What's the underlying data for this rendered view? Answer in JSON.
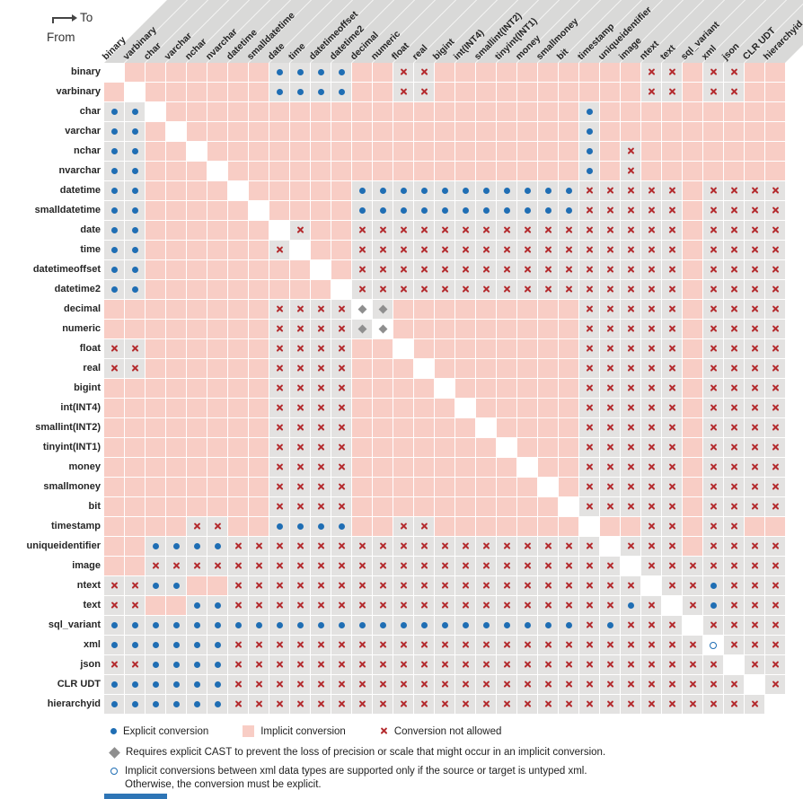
{
  "header": {
    "to_label": "To",
    "from_label": "From"
  },
  "legend": {
    "explicit": "Explicit conversion",
    "implicit": "Implicit conversion",
    "not_allowed": "Conversion not allowed",
    "cast_note": "Requires explicit CAST to prevent the loss of precision or scale that might occur in an implicit conversion.",
    "xml_note_line1": "Implicit conversions between xml data types are supported only if the source or target is untyped xml.",
    "xml_note_line2": "Otherwise, the conversion must be explicit."
  },
  "colors": {
    "implicit_bg": "#f8cdc5",
    "mark_bg": "#e3e2e1",
    "explicit_dot": "#1f6eb4",
    "not_allowed_x": "#b42b2e",
    "cast_diamond": "#8f8f8f",
    "xml_circle": "#1f6eb4",
    "header_stripe": "#d9d9d8",
    "label_text": "#262626",
    "bottom_bar": "#2e75b6"
  },
  "chart_data": {
    "type": "heatmap",
    "x_axis_label": "To",
    "y_axis_label": "From",
    "x": [
      "binary",
      "varbinary",
      "char",
      "varchar",
      "nchar",
      "nvarchar",
      "datetime",
      "smalldatetime",
      "date",
      "time",
      "datetimeoffset",
      "datetime2",
      "decimal",
      "numeric",
      "float",
      "real",
      "bigint",
      "int(INT4)",
      "smallint(INT2)",
      "tinyint(INT1)",
      "money",
      "smallmoney",
      "bit",
      "timestamp",
      "uniqueidentifier",
      "image",
      "ntext",
      "text",
      "sql_variant",
      "xml",
      "json",
      "CLR UDT",
      "hierarchyid"
    ],
    "y": [
      "binary",
      "varbinary",
      "char",
      "varchar",
      "nchar",
      "nvarchar",
      "datetime",
      "smalldatetime",
      "date",
      "time",
      "datetimeoffset",
      "datetime2",
      "decimal",
      "numeric",
      "float",
      "real",
      "bigint",
      "int(INT4)",
      "smallint(INT2)",
      "tinyint(INT1)",
      "money",
      "smallmoney",
      "bit",
      "timestamp",
      "uniqueidentifier",
      "image",
      "ntext",
      "text",
      "sql_variant",
      "xml",
      "json",
      "CLR UDT",
      "hierarchyid"
    ],
    "cell_codes": {
      "S": "same type (diagonal, no conversion)",
      "I": "implicit conversion",
      "E": "explicit conversion",
      "X": "conversion not allowed",
      "D": "requires explicit CAST to prevent loss of precision or scale",
      "O": "implicit only if source or target is untyped xml"
    },
    "values": [
      "SIIIIIIIEEEEIIXXIIIIIIIIIIXXIXXII",
      "ISIIIIIIEEEEIIXXIIIIIIIIIIXXIXXII",
      "EESIIIIIIIIIIIIIIIIIIIIEIIIIIIIII",
      "EEISIIIIIIIIIIIIIIIIIIIEIIIIIIIII",
      "EEIISIIIIIIIIIIIIIIIIIIEIXIIIIIII",
      "EEIIISIIIIIIIIIIIIIIIIIEIXIIIIIII",
      "EEIIIISIIIIIEEEEEEEEEEEXXXXXIXXXX",
      "EEIIIIISIIIIEEEEEEEEEEEXXXXXIXXXX",
      "EEIIIIIISXIIXXXXXXXXXXXXXXXXIXXXX",
      "EEIIIIIIXSIIXXXXXXXXXXXXXXXXIXXXX",
      "EEIIIIIIIISIXXXXXXXXXXXXXXXXIXXXX",
      "EEIIIIIIIIISXXXXXXXXXXXXXXXXIXXXX",
      "IIIIIIIIXXXXDDIIIIIIIIIXXXXXIXXXX",
      "IIIIIIIIXXXXDDIIIIIIIIIXXXXXIXXXX",
      "XXIIIIIIXXXXIISIIIIIIIIXXXXXIXXXX",
      "XXIIIIIIXXXXIIISIIIIIIIXXXXXIXXXX",
      "IIIIIIIIXXXXIIIISIIIIIIXXXXXIXXXX",
      "IIIIIIIIXXXXIIIIISIIIIIXXXXXIXXXX",
      "IIIIIIIIXXXXIIIIIISIIIIXXXXXIXXXX",
      "IIIIIIIIXXXXIIIIIIISIIIXXXXXIXXXX",
      "IIIIIIIIXXXXIIIIIIIISIIXXXXXIXXXX",
      "IIIIIIIIXXXXIIIIIIIIISIXXXXXIXXXX",
      "IIIIIIIIXXXXIIIIIIIIIISXXXXXIXXXX",
      "IIIIXXIIEEEEIIXXIIIIIIISIIXXIXXII",
      "IIEEEEXXXXXXXXXXXXXXXXXXSXXXIXXXX",
      "IIXXXXXXXXXXXXXXXXXXXXXXXSXXXXXXX",
      "XXEEIIXXXXXXXXXXXXXXXXXXXXSXXEXXX",
      "XXIIEEXXXXXXXXXXXXXXXXXXXEXSXEXXX",
      "EEEEEEEEEEEEEEEEEEEEEEEXEXXXSXXXX",
      "EEEEEEXXXXXXXXXXXXXXXXXXXXXXXOXXX",
      "XXEEEEXXXXXXXXXXXXXXXXXXXXXXXXSXX",
      "EEEEEEXXXXXXXXXXXXXXXXXXXXXXXXXSX",
      "EEEEEEXXXXXXXXXXXXXXXXXXXXXXXXXXS"
    ]
  }
}
